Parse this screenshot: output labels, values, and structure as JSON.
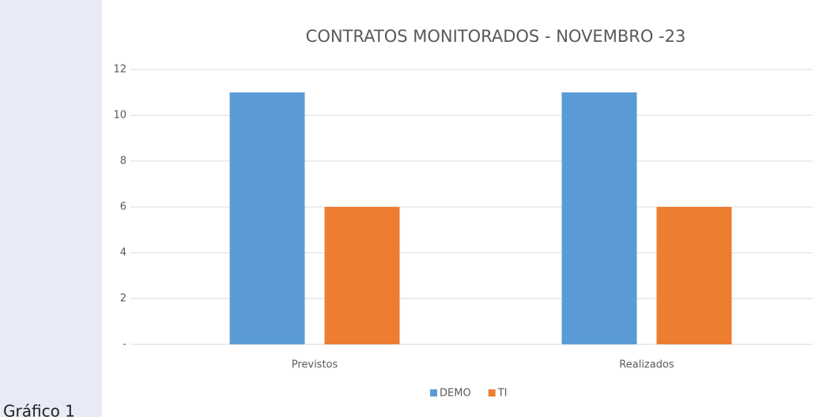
{
  "chart_data": {
    "type": "bar",
    "title": "CONTRATOS MONITORADOS - NOVEMBRO -23",
    "categories": [
      "Previstos",
      "Realizados"
    ],
    "series": [
      {
        "name": "DEMO",
        "color": "#5b9bd5",
        "values": [
          11,
          11
        ]
      },
      {
        "name": "TI",
        "color": "#ed7d31",
        "values": [
          6,
          6
        ]
      }
    ],
    "ylim": [
      0,
      12
    ],
    "yticks": [
      {
        "value": 0,
        "label": "-"
      },
      2,
      4,
      6,
      8,
      10,
      12
    ],
    "grid": true,
    "legend": "bottom"
  },
  "caption": "Gráfico 1"
}
